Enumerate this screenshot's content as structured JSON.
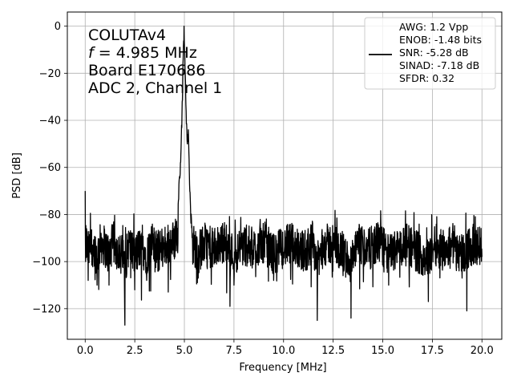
{
  "chart_data": {
    "type": "line",
    "xlabel": "Frequency [MHz]",
    "ylabel": "PSD [dB]",
    "xlim": [
      -0.9,
      21.0
    ],
    "ylim": [
      -133,
      6
    ],
    "xticks": [
      0.0,
      2.5,
      5.0,
      7.5,
      10.0,
      12.5,
      15.0,
      17.5,
      20.0
    ],
    "xtick_labels": [
      "0.0",
      "2.5",
      "5.0",
      "7.5",
      "10.0",
      "12.5",
      "15.0",
      "17.5",
      "20.0"
    ],
    "yticks": [
      0,
      -20,
      -40,
      -60,
      -80,
      -100,
      -120
    ],
    "ytick_labels": [
      "0",
      "−20",
      "−40",
      "−60",
      "−80",
      "−100",
      "−120"
    ],
    "grid": true,
    "legend_position": "top-right",
    "line_color": "#000000",
    "series": [
      {
        "x": [
          0.0,
          0.02,
          0.06,
          0.15,
          0.3,
          0.45,
          0.6,
          0.8,
          1.0,
          1.2,
          1.4,
          1.6,
          1.8,
          2.0,
          2.2,
          2.5,
          2.8,
          3.1,
          3.4,
          3.7,
          4.0,
          4.2,
          4.4,
          4.55,
          4.7,
          4.8,
          4.88,
          4.94,
          4.985,
          5.03,
          5.09,
          5.15,
          5.2,
          5.25,
          5.32,
          5.4,
          5.5,
          5.7,
          6.0,
          6.5,
          7.0,
          7.5,
          8.0,
          8.5,
          9.0,
          9.5,
          10.0,
          10.5,
          11.0,
          11.5,
          11.7,
          12.0,
          12.5,
          13.0,
          13.4,
          13.8,
          14.3,
          14.8,
          15.3,
          15.8,
          16.3,
          16.8,
          17.3,
          17.6,
          18.0,
          18.5,
          19.0,
          19.5,
          20.0
        ],
        "y": [
          -70,
          -100,
          -86,
          -108,
          -91,
          -98,
          -110,
          -88,
          -95,
          -110,
          -87,
          -99,
          -105,
          -127,
          -92,
          -112,
          -94,
          -108,
          -91,
          -104,
          -92,
          -95,
          -88,
          -82,
          -74,
          -58,
          -38,
          -14,
          0,
          -18,
          -36,
          -50,
          -44,
          -62,
          -80,
          -88,
          -95,
          -107,
          -90,
          -101,
          -86,
          -110,
          -92,
          -99,
          -87,
          -108,
          -96,
          -90,
          -104,
          -88,
          -125,
          -95,
          -89,
          -106,
          -124,
          -93,
          -100,
          -87,
          -110,
          -96,
          -92,
          -105,
          -117,
          -91,
          -100,
          -88,
          -107,
          -93,
          -98
        ]
      }
    ],
    "annotations": [
      "COLUTAv4",
      "f",
      " = 4.985 MHz",
      "Board E170686",
      "ADC 2, Channel 1"
    ],
    "legend": {
      "label_lines": [
        "AWG: 1.2 Vpp",
        "ENOB: -1.48 bits",
        "SNR: -5.28 dB",
        "SINAD: -7.18 dB",
        "SFDR: 0.32"
      ]
    }
  }
}
